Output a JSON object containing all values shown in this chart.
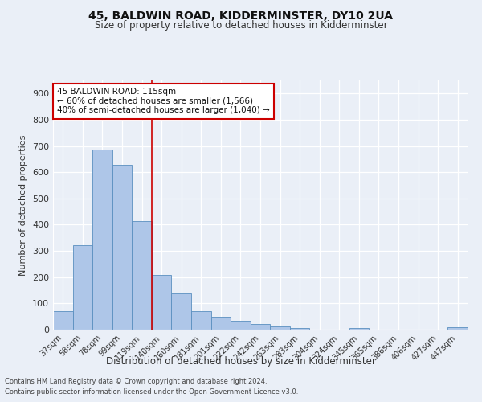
{
  "title1": "45, BALDWIN ROAD, KIDDERMINSTER, DY10 2UA",
  "title2": "Size of property relative to detached houses in Kidderminster",
  "xlabel": "Distribution of detached houses by size in Kidderminster",
  "ylabel": "Number of detached properties",
  "footnote1": "Contains HM Land Registry data © Crown copyright and database right 2024.",
  "footnote2": "Contains public sector information licensed under the Open Government Licence v3.0.",
  "categories": [
    "37sqm",
    "58sqm",
    "78sqm",
    "99sqm",
    "119sqm",
    "140sqm",
    "160sqm",
    "181sqm",
    "201sqm",
    "222sqm",
    "242sqm",
    "263sqm",
    "283sqm",
    "304sqm",
    "324sqm",
    "345sqm",
    "365sqm",
    "386sqm",
    "406sqm",
    "427sqm",
    "447sqm"
  ],
  "values": [
    70,
    322,
    686,
    627,
    413,
    209,
    137,
    70,
    48,
    34,
    22,
    13,
    6,
    0,
    0,
    7,
    0,
    0,
    0,
    0,
    8
  ],
  "bar_color": "#aec6e8",
  "bar_edge_color": "#5a8fc0",
  "highlight_x": "119sqm",
  "vline_color": "#cc0000",
  "annotation_title": "45 BALDWIN ROAD: 115sqm",
  "annotation_line1": "← 60% of detached houses are smaller (1,566)",
  "annotation_line2": "40% of semi-detached houses are larger (1,040) →",
  "annotation_box_color": "#ffffff",
  "annotation_box_edge": "#cc0000",
  "bg_color": "#eaeff7",
  "plot_bg_color": "#eaeff7",
  "ylim": [
    0,
    950
  ],
  "yticks": [
    0,
    100,
    200,
    300,
    400,
    500,
    600,
    700,
    800,
    900
  ]
}
